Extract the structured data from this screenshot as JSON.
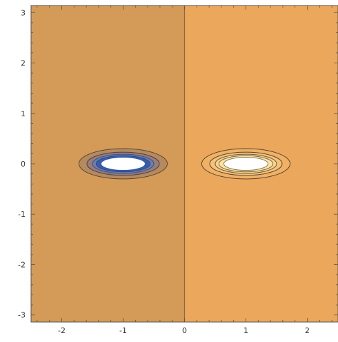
{
  "chart_data": {
    "type": "heatmap",
    "subtype": "contour",
    "title": "",
    "xlabel": "",
    "ylabel": "",
    "xlim": [
      -2.5,
      2.5
    ],
    "ylim": [
      -3.14,
      3.14
    ],
    "x_ticks": [
      "-2",
      "-1",
      "0",
      "1",
      "2"
    ],
    "x_tick_values": [
      -2,
      -1,
      0,
      1,
      2
    ],
    "y_ticks": [
      "-3",
      "-2",
      "-1",
      "0",
      "1",
      "2",
      "3"
    ],
    "y_tick_values": [
      -3,
      -2,
      -1,
      0,
      1,
      2,
      3
    ],
    "grid": false,
    "regions": [
      {
        "name": "left half-plane",
        "x_range": [
          -2.5,
          0
        ],
        "color": "#d49a58"
      },
      {
        "name": "right half-plane",
        "x_range": [
          0,
          2.5
        ],
        "color": "#eba75b"
      }
    ],
    "divider_x": 0,
    "divider_color": "#8a6a45",
    "singular_regions": [
      {
        "center": [
          -1,
          0
        ],
        "hole_color": "#ffffff",
        "contours": [
          {
            "rx": 0.72,
            "ry": 0.3,
            "fill": "#b58a5f",
            "stroke": "#5a4632"
          },
          {
            "rx": 0.59,
            "ry": 0.23,
            "fill": "#9a7c78",
            "stroke": "#4d4048"
          },
          {
            "rx": 0.5,
            "ry": 0.19,
            "fill": "#6d7fa6",
            "stroke": "#3a4f8a"
          },
          {
            "rx": 0.44,
            "ry": 0.16,
            "fill": "#3b5da8",
            "stroke": "#2a4890"
          },
          {
            "rx": 0.36,
            "ry": 0.13,
            "fill": "#ffffff",
            "stroke": "#3355a0"
          }
        ]
      },
      {
        "center": [
          1,
          0
        ],
        "hole_color": "#ffffff",
        "contours": [
          {
            "rx": 0.72,
            "ry": 0.3,
            "fill": "#f0b164",
            "stroke": "#5a4632"
          },
          {
            "rx": 0.59,
            "ry": 0.23,
            "fill": "#f5c27a",
            "stroke": "#5a4632"
          },
          {
            "rx": 0.5,
            "ry": 0.19,
            "fill": "#f8d38e",
            "stroke": "#6a5a3a"
          },
          {
            "rx": 0.44,
            "ry": 0.16,
            "fill": "#fbe3a8",
            "stroke": "#7a6a45"
          },
          {
            "rx": 0.36,
            "ry": 0.13,
            "fill": "#ffffff",
            "stroke": "#8a7a50"
          }
        ]
      }
    ],
    "frame_color": "#555555"
  }
}
